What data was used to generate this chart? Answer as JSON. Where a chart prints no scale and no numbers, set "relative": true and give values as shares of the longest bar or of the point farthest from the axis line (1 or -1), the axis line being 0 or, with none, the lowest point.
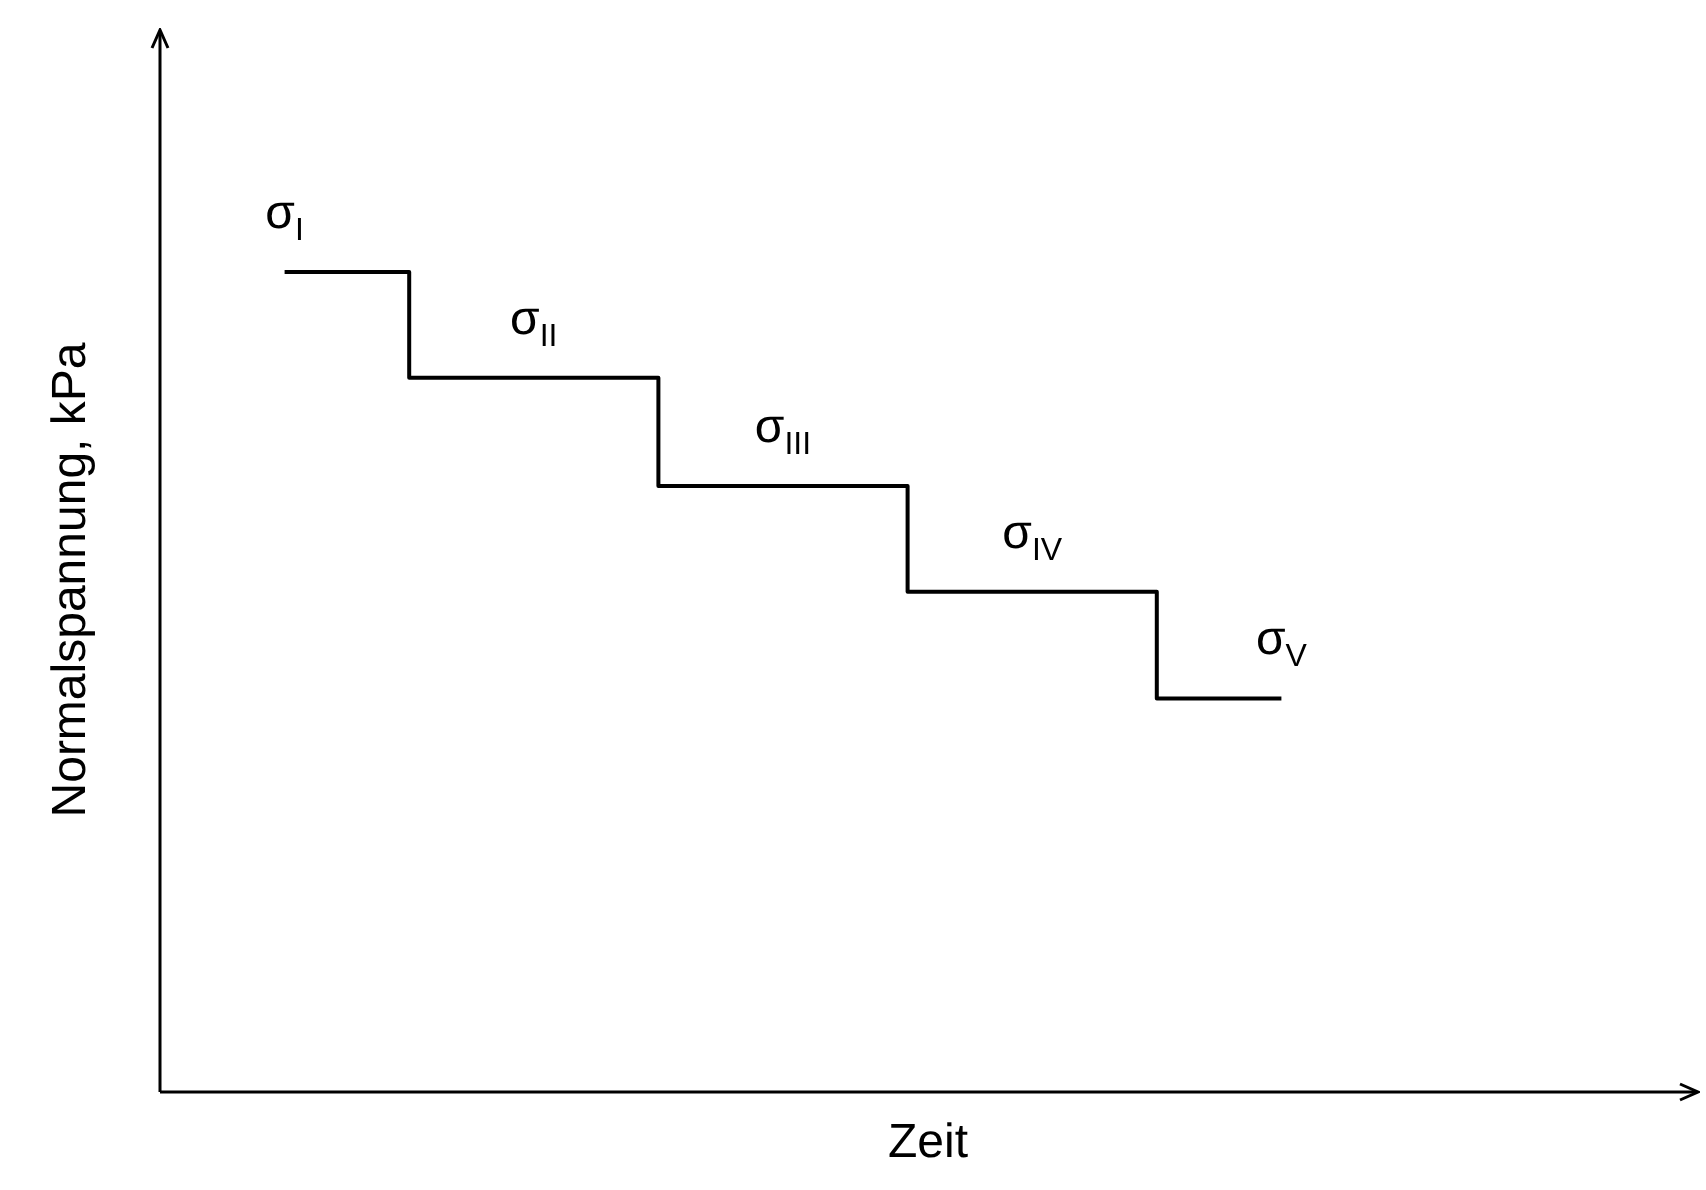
{
  "chart_data": {
    "type": "step",
    "relative": true,
    "xlabel": "Zeit",
    "ylabel": "Normalspannung, kPa",
    "categories": [
      null,
      null,
      null,
      null,
      null
    ],
    "series": [
      {
        "color": "#000000",
        "values": [
          1,
          0.871,
          0.739,
          0.61,
          0.48
        ]
      }
    ],
    "annotations": [
      "σ$_{I}$",
      "σ$_{II}$",
      "σ$_{III}$",
      "σ$_{IV}$",
      "σ$_{V}$"
    ],
    "legend": false
  }
}
